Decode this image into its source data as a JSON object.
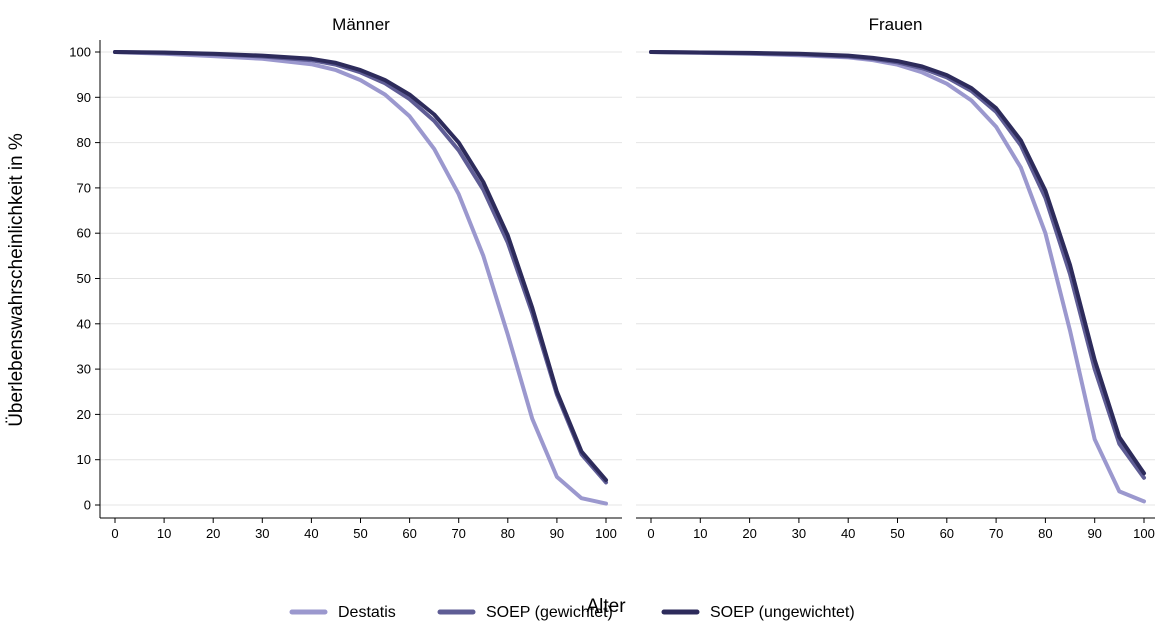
{
  "chart_data": {
    "type": "line",
    "xlabel": "Alter",
    "ylabel": "Überlebenswahrscheinlichkeit in %",
    "xlim": [
      0,
      100
    ],
    "ylim": [
      0,
      100
    ],
    "xticks": [
      0,
      10,
      20,
      30,
      40,
      50,
      60,
      70,
      80,
      90,
      100
    ],
    "yticks": [
      0,
      10,
      20,
      30,
      40,
      50,
      60,
      70,
      80,
      90,
      100
    ],
    "grid": "horizontal",
    "legend_position": "bottom",
    "colors": {
      "Destatis": "#9b98ce",
      "SOEP (gewichtet)": "#5f5d95",
      "SOEP (ungewichtet)": "#2d2b5b"
    },
    "panels": [
      {
        "title": "Männer",
        "x": [
          0,
          10,
          20,
          30,
          40,
          45,
          50,
          55,
          60,
          65,
          70,
          75,
          80,
          85,
          90,
          95,
          100
        ],
        "series": [
          {
            "name": "Destatis",
            "values": [
              100,
              99.6,
              99.1,
              98.5,
              97.3,
              96.0,
              93.8,
              90.6,
              85.8,
              78.6,
              68.6,
              55.0,
              37.6,
              19.0,
              6.2,
              1.5,
              0.3
            ]
          },
          {
            "name": "SOEP (gewichtet)",
            "values": [
              100,
              99.8,
              99.5,
              99.0,
              98.2,
              97.2,
              95.5,
              93.1,
              89.6,
              84.8,
              78.3,
              69.6,
              57.9,
              42.3,
              24.4,
              11.2,
              5.0
            ]
          },
          {
            "name": "SOEP (ungewichtet)",
            "values": [
              100,
              99.9,
              99.6,
              99.2,
              98.5,
              97.6,
              96.0,
              93.8,
              90.6,
              86.2,
              80.0,
              71.3,
              59.5,
              43.5,
              25.0,
              11.8,
              5.5
            ]
          }
        ]
      },
      {
        "title": "Frauen",
        "x": [
          0,
          10,
          20,
          30,
          40,
          45,
          50,
          55,
          60,
          65,
          70,
          75,
          80,
          85,
          90,
          95,
          100
        ],
        "series": [
          {
            "name": "Destatis",
            "values": [
              100,
              99.8,
              99.6,
              99.3,
              98.8,
              98.2,
              97.2,
              95.5,
              93.0,
              89.3,
              83.5,
              74.5,
              60.0,
              38.5,
              14.5,
              3.0,
              0.8
            ]
          },
          {
            "name": "SOEP (gewichtet)",
            "values": [
              100,
              99.9,
              99.7,
              99.5,
              99.0,
              98.5,
              97.7,
              96.4,
              94.4,
              91.4,
              86.8,
              79.4,
              67.8,
              51.0,
              30.0,
              13.5,
              6.0
            ]
          },
          {
            "name": "SOEP (ungewichtet)",
            "values": [
              100,
              99.9,
              99.8,
              99.6,
              99.2,
              98.7,
              98.0,
              96.8,
              94.9,
              92.0,
              87.6,
              80.5,
              69.4,
              53.0,
              32.0,
              15.0,
              7.0
            ]
          }
        ]
      }
    ]
  }
}
